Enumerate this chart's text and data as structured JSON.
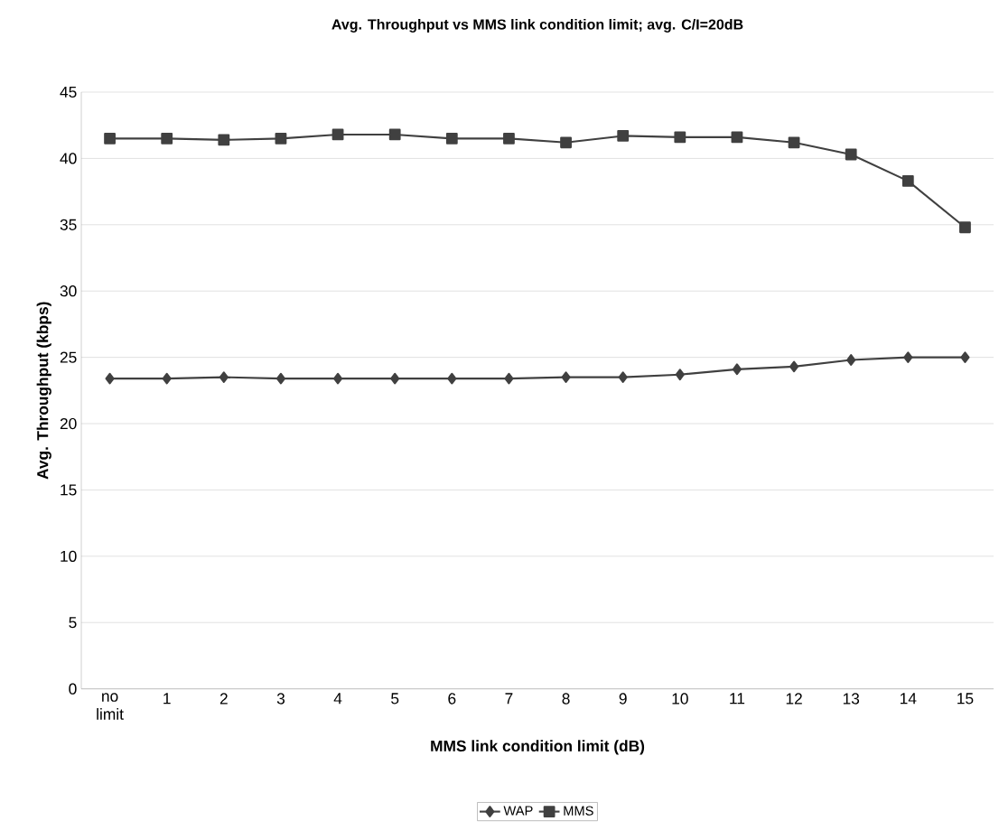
{
  "chart_data": {
    "type": "line",
    "title": "Avg. Throughput vs MMS link condition limit; avg. C/I=20dB",
    "xlabel": "MMS link condition limit (dB)",
    "ylabel": "Avg. Throughput (kbps)",
    "categories": [
      "no limit",
      "1",
      "2",
      "3",
      "4",
      "5",
      "6",
      "7",
      "8",
      "9",
      "10",
      "11",
      "12",
      "13",
      "14",
      "15"
    ],
    "series": [
      {
        "name": "WAP",
        "color": "#404040",
        "marker": "diamond",
        "values": [
          23.4,
          23.4,
          23.5,
          23.4,
          23.4,
          23.4,
          23.4,
          23.4,
          23.5,
          23.5,
          23.7,
          24.1,
          24.3,
          24.8,
          25.0,
          25.0
        ]
      },
      {
        "name": "MMS",
        "color": "#404040",
        "marker": "square",
        "values": [
          41.5,
          41.5,
          41.4,
          41.5,
          41.8,
          41.8,
          41.5,
          41.5,
          41.2,
          41.7,
          41.6,
          41.6,
          41.2,
          40.3,
          38.3,
          34.8
        ]
      }
    ],
    "ylim": [
      0,
      45
    ],
    "yticks": [
      0,
      5,
      10,
      15,
      20,
      25,
      30,
      35,
      40,
      45
    ],
    "grid": "y",
    "legend": "bottom",
    "line_style": "solid"
  }
}
